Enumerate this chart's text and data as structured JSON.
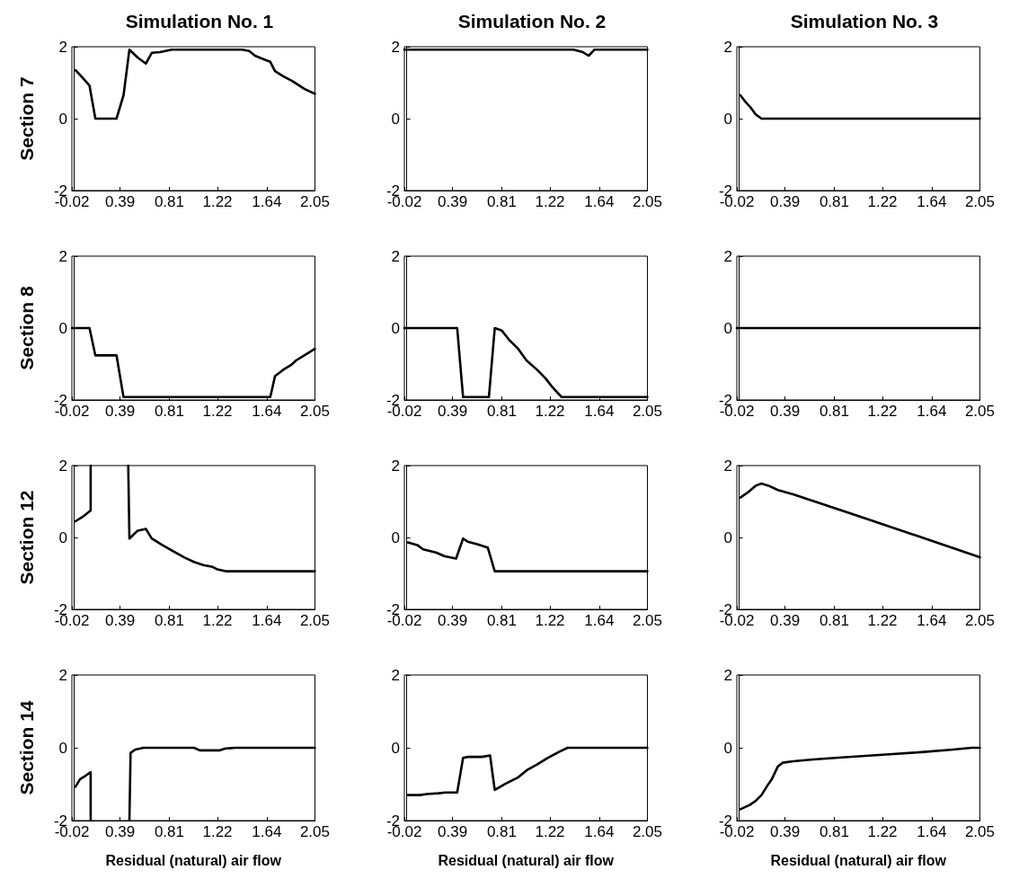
{
  "chart_data": [
    {
      "type": "line",
      "title": "Simulation No. 1",
      "ylabel": "Section 7",
      "marker": "none",
      "line_style": "solid",
      "xlim": [
        -0.02,
        2.05
      ],
      "ylim": [
        -2,
        2
      ],
      "xticks": [
        -0.02,
        0.39,
        0.81,
        1.22,
        1.64,
        2.05
      ],
      "yticks": [
        -2,
        0,
        2
      ],
      "x": [
        0.01,
        0.06,
        0.13,
        0.18,
        0.36,
        0.42,
        0.47,
        0.54,
        0.61,
        0.66,
        0.73,
        0.83,
        1.43,
        1.49,
        1.54,
        1.6,
        1.64,
        1.67,
        1.71,
        1.78,
        1.86,
        1.96,
        2.05
      ],
      "series": [
        {
          "color": "#000000",
          "values": [
            1.35,
            1.18,
            0.92,
            0,
            0,
            0.65,
            1.92,
            1.7,
            1.53,
            1.83,
            1.85,
            1.92,
            1.92,
            1.88,
            1.75,
            1.67,
            1.62,
            1.58,
            1.32,
            1.18,
            1.04,
            0.83,
            0.69
          ]
        }
      ]
    },
    {
      "type": "line",
      "title": "Simulation No. 2",
      "marker": "none",
      "line_style": "solid",
      "xlim": [
        -0.02,
        2.05
      ],
      "ylim": [
        -2,
        2
      ],
      "xticks": [
        -0.02,
        0.39,
        0.81,
        1.22,
        1.64,
        2.05
      ],
      "yticks": [
        -2,
        0,
        2
      ],
      "x": [
        -0.02,
        1.42,
        1.5,
        1.55,
        1.6,
        2.05
      ],
      "series": [
        {
          "color": "#000000",
          "values": [
            1.92,
            1.92,
            1.85,
            1.75,
            1.92,
            1.92
          ]
        }
      ]
    },
    {
      "type": "line",
      "title": "Simulation No. 3",
      "marker": "none",
      "line_style": "solid",
      "xlim": [
        -0.02,
        2.05
      ],
      "ylim": [
        -2,
        2
      ],
      "xticks": [
        -0.02,
        0.39,
        0.81,
        1.22,
        1.64,
        2.05
      ],
      "yticks": [
        -2,
        0,
        2
      ],
      "x": [
        0.01,
        0.05,
        0.1,
        0.14,
        0.19,
        2.05
      ],
      "series": [
        {
          "color": "#000000",
          "values": [
            0.65,
            0.48,
            0.3,
            0.12,
            0,
            0
          ]
        }
      ]
    },
    {
      "type": "line",
      "ylabel": "Section 8",
      "marker": "none",
      "line_style": "solid",
      "xlim": [
        -0.02,
        2.05
      ],
      "ylim": [
        -2,
        2
      ],
      "xticks": [
        -0.02,
        0.39,
        0.81,
        1.22,
        1.64,
        2.05
      ],
      "yticks": [
        -2,
        0,
        2
      ],
      "x": [
        -0.02,
        0.13,
        0.18,
        0.36,
        0.42,
        1.67,
        1.71,
        1.78,
        1.85,
        1.89,
        1.96,
        2.05
      ],
      "series": [
        {
          "color": "#000000",
          "values": [
            0,
            0,
            -0.76,
            -0.76,
            -1.92,
            -1.92,
            -1.34,
            -1.16,
            -1.02,
            -0.9,
            -0.76,
            -0.58
          ]
        }
      ]
    },
    {
      "type": "line",
      "marker": "none",
      "line_style": "solid",
      "xlim": [
        -0.02,
        2.05
      ],
      "ylim": [
        -2,
        2
      ],
      "xticks": [
        -0.02,
        0.39,
        0.81,
        1.22,
        1.64,
        2.05
      ],
      "yticks": [
        -2,
        0,
        2
      ],
      "x": [
        -0.02,
        0.43,
        0.48,
        0.7,
        0.75,
        0.81,
        0.87,
        0.95,
        1.02,
        1.11,
        1.18,
        1.24,
        1.32,
        2.05
      ],
      "series": [
        {
          "color": "#000000",
          "values": [
            0,
            0,
            -1.92,
            -1.92,
            0,
            -0.07,
            -0.32,
            -0.58,
            -0.9,
            -1.16,
            -1.39,
            -1.64,
            -1.92,
            -1.92
          ]
        }
      ]
    },
    {
      "type": "line",
      "marker": "none",
      "line_style": "solid",
      "xlim": [
        -0.02,
        2.05
      ],
      "ylim": [
        -2,
        2
      ],
      "xticks": [
        -0.02,
        0.39,
        0.81,
        1.22,
        1.64,
        2.05
      ],
      "yticks": [
        -2,
        0,
        2
      ],
      "x": [
        -0.02,
        2.05
      ],
      "series": [
        {
          "color": "#000000",
          "values": [
            0,
            0
          ]
        }
      ]
    },
    {
      "type": "line",
      "ylabel": "Section 12",
      "marker": "none",
      "line_style": "solid",
      "xlim": [
        -0.02,
        2.05
      ],
      "ylim": [
        -2,
        2
      ],
      "xticks": [
        -0.02,
        0.39,
        0.81,
        1.22,
        1.64,
        2.05
      ],
      "yticks": [
        -2,
        0,
        2
      ],
      "x": [
        0.01,
        0.07,
        0.14,
        0.14,
        0.3,
        0.46,
        0.47,
        0.54,
        0.61,
        0.66,
        0.75,
        0.84,
        0.94,
        1.02,
        1.1,
        1.18,
        1.22,
        1.29,
        2.05
      ],
      "series": [
        {
          "color": "#000000",
          "values": [
            0.45,
            0.57,
            0.75,
            2,
            null,
            2,
            -0.03,
            0.19,
            0.24,
            -0.03,
            -0.21,
            -0.38,
            -0.56,
            -0.68,
            -0.77,
            -0.82,
            -0.89,
            -0.94,
            -0.94
          ]
        }
      ]
    },
    {
      "type": "line",
      "marker": "none",
      "line_style": "solid",
      "xlim": [
        -0.02,
        2.05
      ],
      "ylim": [
        -2,
        2
      ],
      "xticks": [
        -0.02,
        0.39,
        0.81,
        1.22,
        1.64,
        2.05
      ],
      "yticks": [
        -2,
        0,
        2
      ],
      "x": [
        0.01,
        0.09,
        0.14,
        0.25,
        0.32,
        0.42,
        0.48,
        0.52,
        0.6,
        0.69,
        0.75,
        2.05
      ],
      "series": [
        {
          "color": "#000000",
          "values": [
            -0.14,
            -0.21,
            -0.33,
            -0.42,
            -0.52,
            -0.59,
            -0.03,
            -0.12,
            -0.19,
            -0.28,
            -0.94,
            -0.94
          ]
        }
      ]
    },
    {
      "type": "line",
      "marker": "none",
      "line_style": "solid",
      "xlim": [
        -0.02,
        2.05
      ],
      "ylim": [
        -2,
        2
      ],
      "xticks": [
        -0.02,
        0.39,
        0.81,
        1.22,
        1.64,
        2.05
      ],
      "yticks": [
        -2,
        0,
        2
      ],
      "x": [
        0.01,
        0.08,
        0.14,
        0.19,
        0.25,
        0.33,
        0.46,
        1.0,
        1.5,
        2.05
      ],
      "series": [
        {
          "color": "#000000",
          "values": [
            1.11,
            1.27,
            1.44,
            1.5,
            1.44,
            1.32,
            1.2,
            0.61,
            0.06,
            -0.55
          ]
        }
      ]
    },
    {
      "type": "line",
      "ylabel": "Section 14",
      "xlabel": "Residual (natural) air flow",
      "marker": "none",
      "line_style": "solid",
      "xlim": [
        -0.02,
        2.05
      ],
      "ylim": [
        -2,
        2
      ],
      "xticks": [
        -0.02,
        0.39,
        0.81,
        1.22,
        1.64,
        2.05
      ],
      "yticks": [
        -2,
        0,
        2
      ],
      "x": [
        0.01,
        0.05,
        0.1,
        0.14,
        0.14,
        0.3,
        0.47,
        0.48,
        0.52,
        0.59,
        1.02,
        1.07,
        1.24,
        1.29,
        1.37,
        2.05
      ],
      "series": [
        {
          "color": "#000000",
          "values": [
            -1.07,
            -0.86,
            -0.76,
            -0.67,
            -2,
            null,
            -2,
            -0.14,
            -0.05,
            0,
            0,
            -0.07,
            -0.07,
            -0.02,
            0,
            0
          ]
        }
      ]
    },
    {
      "type": "line",
      "xlabel": "Residual (natural) air flow",
      "marker": "none",
      "line_style": "solid",
      "xlim": [
        -0.02,
        2.05
      ],
      "ylim": [
        -2,
        2
      ],
      "xticks": [
        -0.02,
        0.39,
        0.81,
        1.22,
        1.64,
        2.05
      ],
      "yticks": [
        -2,
        0,
        2
      ],
      "x": [
        0.01,
        0.11,
        0.17,
        0.27,
        0.33,
        0.43,
        0.48,
        0.52,
        0.64,
        0.71,
        0.75,
        0.84,
        0.95,
        1.03,
        1.11,
        1.2,
        1.3,
        1.37,
        2.05
      ],
      "series": [
        {
          "color": "#000000",
          "values": [
            -1.3,
            -1.3,
            -1.27,
            -1.25,
            -1.23,
            -1.23,
            -0.28,
            -0.25,
            -0.25,
            -0.21,
            -1.16,
            -0.99,
            -0.81,
            -0.6,
            -0.46,
            -0.28,
            -0.11,
            0,
            0
          ]
        }
      ]
    },
    {
      "type": "line",
      "xlabel": "Residual (natural) air flow",
      "marker": "none",
      "line_style": "solid",
      "xlim": [
        -0.02,
        2.05
      ],
      "ylim": [
        -2,
        2
      ],
      "xticks": [
        -0.02,
        0.39,
        0.81,
        1.22,
        1.64,
        2.05
      ],
      "yticks": [
        -2,
        0,
        2
      ],
      "x": [
        0.01,
        0.09,
        0.14,
        0.19,
        0.24,
        0.28,
        0.33,
        0.37,
        0.46,
        0.63,
        0.9,
        1.22,
        1.55,
        1.82,
        1.98,
        2.05
      ],
      "series": [
        {
          "color": "#000000",
          "values": [
            -1.69,
            -1.57,
            -1.46,
            -1.3,
            -1.04,
            -0.85,
            -0.51,
            -0.41,
            -0.37,
            -0.32,
            -0.26,
            -0.19,
            -0.12,
            -0.05,
            0,
            0
          ]
        }
      ]
    }
  ]
}
